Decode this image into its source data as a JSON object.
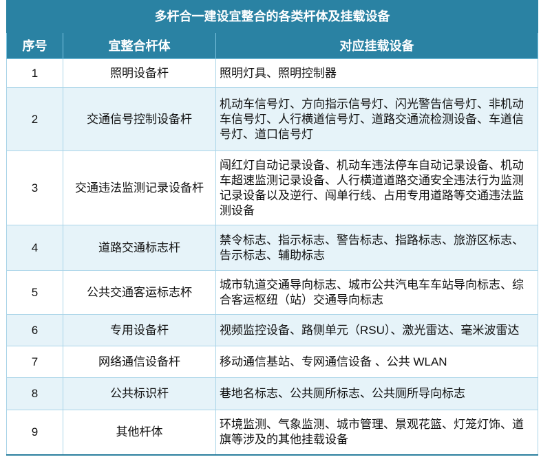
{
  "table": {
    "title": "多杆合一建设宜整合的各类杆体及挂载设备",
    "headers": [
      "序号",
      "宜整合杆体",
      "对应挂载设备"
    ],
    "rows": [
      {
        "no": "1",
        "pole": "照明设备杆",
        "equipment": "照明灯具、照明控制器"
      },
      {
        "no": "2",
        "pole": "交通信号控制设备杆",
        "equipment": "机动车信号灯、方向指示信号灯、闪光警告信号灯、非机动车信号灯、人行横道信号灯、道路交通流检测设备、车道信号灯、道口信号灯"
      },
      {
        "no": "3",
        "pole": "交通违法监测记录设备杆",
        "equipment": "闯红灯自动记录设备、机动车违法停车自动记录设备、机动车超速监测记录设备、人行横道道路交通安全违法行为监测记录设备以及逆行、闯单行线、占用专用道路等交通违法监测设备"
      },
      {
        "no": "4",
        "pole": "道路交通标志杆",
        "equipment": "禁令标志、指示标志、警告标志、指路标志、旅游区标志、告示标志、辅助标志"
      },
      {
        "no": "5",
        "pole": "公共交通客运标志杯",
        "equipment": "城市轨道交通导向标志、城市公共汽电车车站导向标志、综合客运枢纽（站）交通导向标志"
      },
      {
        "no": "6",
        "pole": "专用设备杆",
        "equipment": "视频监控设备、路侧单元（RSU）、激光雷达、毫米波雷达"
      },
      {
        "no": "7",
        "pole": "网络通信设备杆",
        "equipment": "移动通信基站、专网通信设备 、公共 WLAN"
      },
      {
        "no": "8",
        "pole": "公共标识杆",
        "equipment": "巷地名标志、公共厕所标志、公共厕所导向标志"
      },
      {
        "no": "9",
        "pole": "其他杆体",
        "equipment": "环境监测、气象监测、城市管理、景观花篮、灯笼灯饰、道旗等涉及的其他挂载设备"
      }
    ]
  },
  "colors": {
    "header_bg": "#2a82a3",
    "stripe_bg": "#e6f3f9",
    "border": "#a9d4e8"
  }
}
